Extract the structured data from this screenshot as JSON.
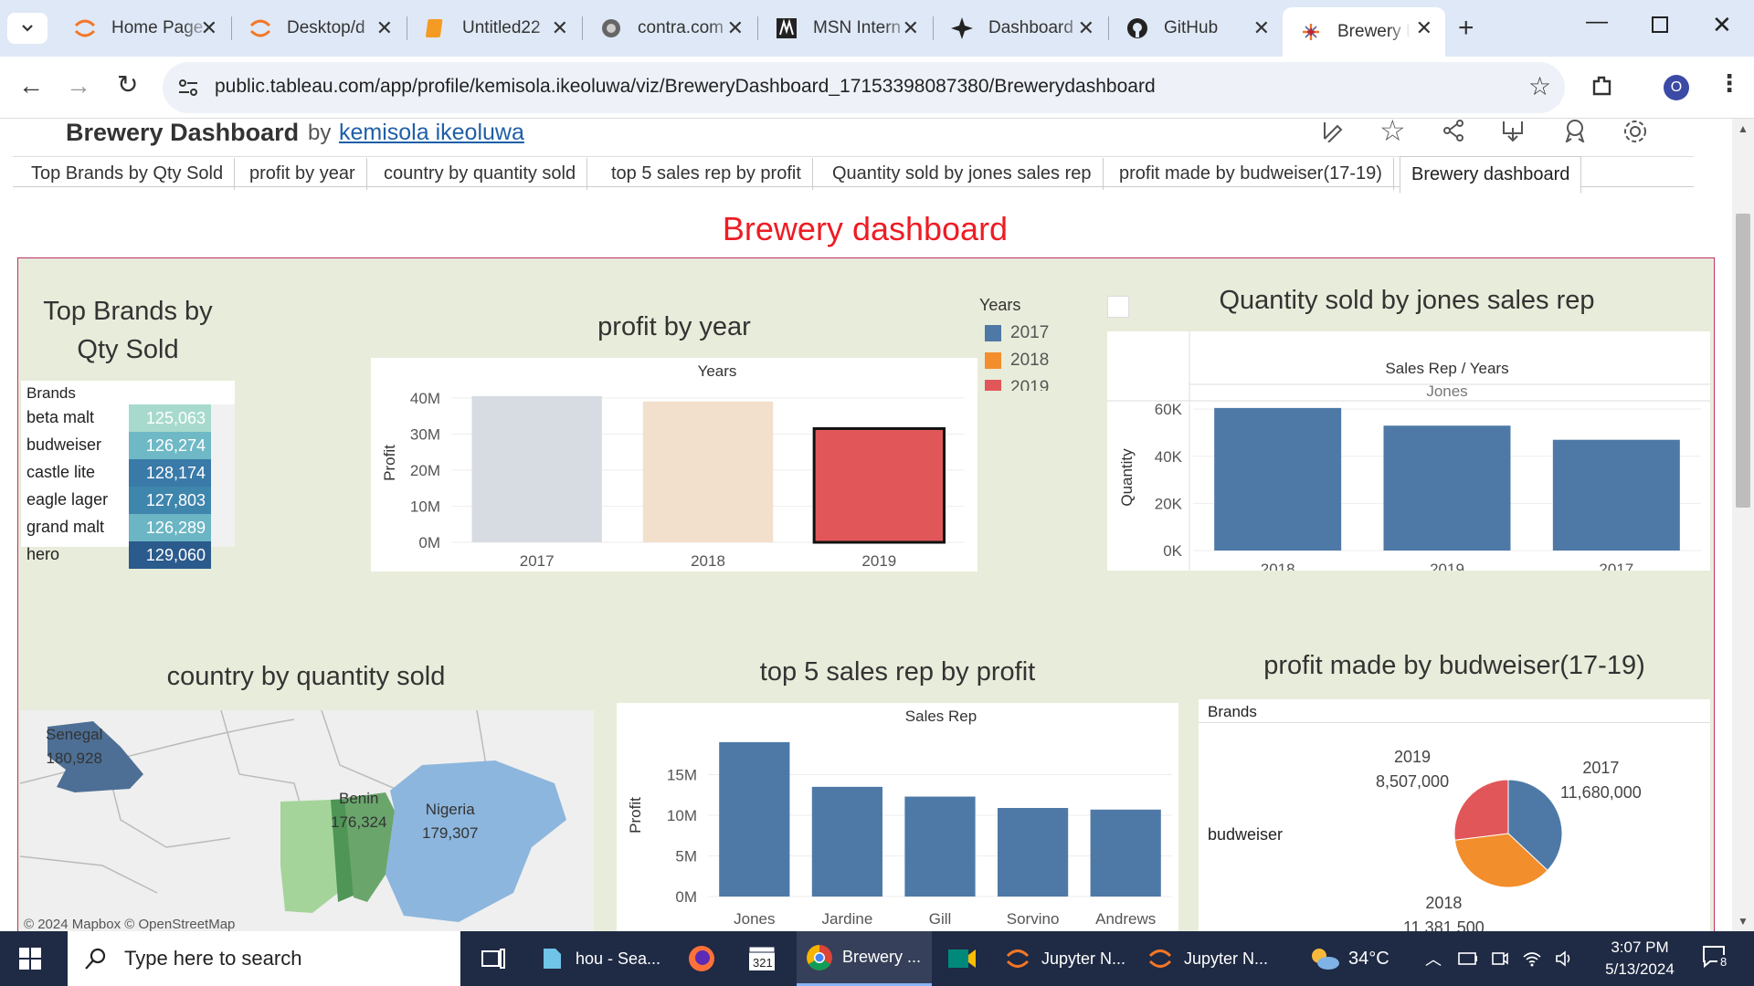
{
  "browser": {
    "tabs": [
      {
        "title": "Home Page",
        "icon": "jupyter-icon"
      },
      {
        "title": "Desktop/d",
        "icon": "jupyter-icon"
      },
      {
        "title": "Untitled22",
        "icon": "notebook-icon"
      },
      {
        "title": "contra.com",
        "icon": "globe-icon"
      },
      {
        "title": "MSN Intern",
        "icon": "msn-icon"
      },
      {
        "title": "Dashboard",
        "icon": "dashboard-icon"
      },
      {
        "title": "GitHub",
        "icon": "github-icon"
      },
      {
        "title": "Brewery D",
        "icon": "tableau-icon",
        "active": true
      }
    ],
    "url": "public.tableau.com/app/profile/kemisola.ikeoluwa/viz/BreweryDashboard_17153398087380/Brewerydashboard",
    "profile_initial": "O"
  },
  "viz": {
    "title": "Brewery Dashboard",
    "by": "by",
    "author": "kemisola ikeoluwa",
    "sheet_tabs": [
      "Top Brands by Qty Sold",
      "profit by year",
      "country by quantity sold",
      "top 5 sales rep by profit",
      "Quantity sold by jones sales rep",
      "profit made by budweiser(17-19)",
      "Brewery dashboard"
    ],
    "active_tab": "Brewery dashboard"
  },
  "dashboard": {
    "title": "Brewery dashboard",
    "title_color": "#ee1c24",
    "bg_color": "#e8ecda",
    "accent_blue": "#4e79a7",
    "orange": "#f28e2b",
    "red": "#e15759"
  },
  "top_brands": {
    "title_line1": "Top Brands by",
    "title_line2": "Qty Sold",
    "header": "Brands",
    "rows": [
      {
        "brand": "beta malt",
        "qty": "125,063",
        "color": "#a7dacc"
      },
      {
        "brand": "budweiser",
        "qty": "126,274",
        "color": "#6fb9c6"
      },
      {
        "brand": "castle lite",
        "qty": "128,174",
        "color": "#3a7aa8"
      },
      {
        "brand": "eagle lager",
        "qty": "127,803",
        "color": "#3f86ad"
      },
      {
        "brand": "grand malt",
        "qty": "126,289",
        "color": "#6bb5c4"
      },
      {
        "brand": "hero",
        "qty": "129,060",
        "color": "#2b5a8c"
      }
    ]
  },
  "profit_by_year": {
    "title": "profit by year",
    "header": "Years",
    "ylabel": "Profit",
    "ticks": [
      "40M",
      "30M",
      "20M",
      "10M",
      "0M"
    ],
    "legend_title": "Years",
    "legend": [
      {
        "label": "2017",
        "color": "#4e79a7"
      },
      {
        "label": "2018",
        "color": "#f28e2b"
      },
      {
        "label": "2019",
        "color": "#e15759"
      }
    ]
  },
  "jones": {
    "title": "Quantity sold by jones sales rep",
    "header": "Sales Rep / Years",
    "subheader": "Jones",
    "ylabel": "Quantity",
    "ticks": [
      "60K",
      "40K",
      "20K",
      "0K"
    ]
  },
  "country": {
    "title": "country by quantity sold",
    "labels": [
      {
        "name": "Senegal",
        "value": "180,928"
      },
      {
        "name": "Benin",
        "value": "176,324"
      },
      {
        "name": "Nigeria",
        "value": "179,307"
      }
    ],
    "attribution": "© 2024 Mapbox  © OpenStreetMap"
  },
  "top5": {
    "title": "top 5 sales rep by profit",
    "header": "Sales Rep",
    "ylabel": "Profit",
    "ticks": [
      "15M",
      "10M",
      "5M",
      "0M"
    ]
  },
  "budweiser": {
    "title": "profit made by budweiser(17-19)",
    "header": "Brands",
    "row_label": "budweiser",
    "labels": [
      {
        "year": "2019",
        "value": "8,507,000"
      },
      {
        "year": "2017",
        "value": "11,680,000"
      },
      {
        "year": "2018",
        "value": "11,381,500"
      }
    ]
  },
  "taskbar": {
    "search_placeholder": "Type here to search",
    "apps": [
      {
        "label": "hou - Sea..."
      },
      {
        "label": "Brewery ..."
      },
      {
        "label": "Jupyter N..."
      },
      {
        "label": "Jupyter N..."
      }
    ],
    "temperature": "34°C",
    "time": "3:07 PM",
    "date": "5/13/2024",
    "notification_count": "8"
  },
  "chart_data": [
    {
      "type": "bar",
      "title": "profit by year",
      "xlabel": "Years",
      "ylabel": "Profit",
      "categories": [
        "2017",
        "2018",
        "2019"
      ],
      "values": [
        40500000,
        39000000,
        31500000
      ],
      "colors": [
        "#d7dce3",
        "#f2dfcc",
        "#e15759"
      ],
      "ylim": [
        0,
        44000000
      ]
    },
    {
      "type": "bar",
      "title": "Quantity sold by jones sales rep",
      "xlabel": "Sales Rep / Years",
      "ylabel": "Quantity",
      "categories": [
        "2018",
        "2019",
        "2017"
      ],
      "values": [
        60500.0,
        53000,
        47000
      ],
      "ylim": [
        0,
        62000
      ]
    },
    {
      "type": "bar",
      "title": "top 5 sales rep by profit",
      "xlabel": "Sales Rep",
      "ylabel": "Profit",
      "categories": [
        "Jones",
        "Jardine",
        "Gill",
        "Sorvino",
        "Andrews"
      ],
      "values": [
        19000000,
        13500000,
        12300000,
        10900000,
        10700000
      ],
      "ylim": [
        0,
        20000000
      ]
    },
    {
      "type": "pie",
      "title": "profit made by budweiser(17-19)",
      "categories": [
        "2017",
        "2018",
        "2019"
      ],
      "values": [
        11680000,
        11381500,
        8507000
      ],
      "colors": [
        "#4e79a7",
        "#f28e2b",
        "#e15759"
      ]
    }
  ]
}
